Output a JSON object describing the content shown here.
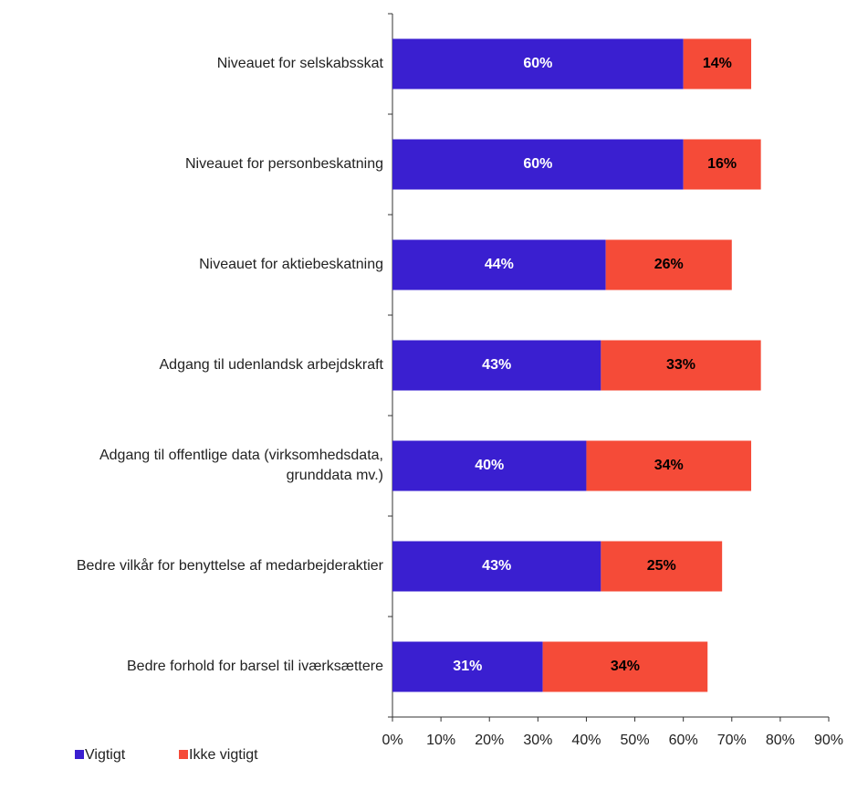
{
  "chart_data": {
    "type": "stacked-barh",
    "categories": [
      "Niveauet for selskabsskat",
      "Niveauet for personbeskatning",
      "Niveauet for aktiebeskatning",
      "Adgang til udenlandsk arbejdskraft",
      "Adgang til offentlige data (virksomhedsdata,\ngrunddata mv.)",
      "Bedre vilkår for benyttelse af medarbejderaktier",
      "Bedre forhold for barsel til iværksættere"
    ],
    "series": [
      {
        "name": "Vigtigt",
        "color": "#3a1fd0",
        "label_color": "#ffffff",
        "values": [
          60,
          60,
          44,
          43,
          40,
          43,
          31
        ],
        "value_labels": [
          "60%",
          "60%",
          "44%",
          "43%",
          "40%",
          "43%",
          "31%"
        ]
      },
      {
        "name": "Ikke vigtigt",
        "color": "#f54b38",
        "label_color": "#000000",
        "values": [
          14,
          16,
          26,
          33,
          34,
          25,
          34
        ],
        "value_labels": [
          "14%",
          "16%",
          "26%",
          "33%",
          "34%",
          "25%",
          "34%"
        ]
      }
    ],
    "xlim": [
      0,
      90
    ],
    "xticks": [
      {
        "value": 0,
        "label": "0%"
      },
      {
        "value": 10,
        "label": "10%"
      },
      {
        "value": 20,
        "label": "20%"
      },
      {
        "value": 30,
        "label": "30%"
      },
      {
        "value": 40,
        "label": "40%"
      },
      {
        "value": 50,
        "label": "50%"
      },
      {
        "value": 60,
        "label": "60%"
      },
      {
        "value": 70,
        "label": "70%"
      },
      {
        "value": 80,
        "label": "80%"
      },
      {
        "value": 90,
        "label": "90%"
      }
    ],
    "legend": "bottom-left"
  }
}
